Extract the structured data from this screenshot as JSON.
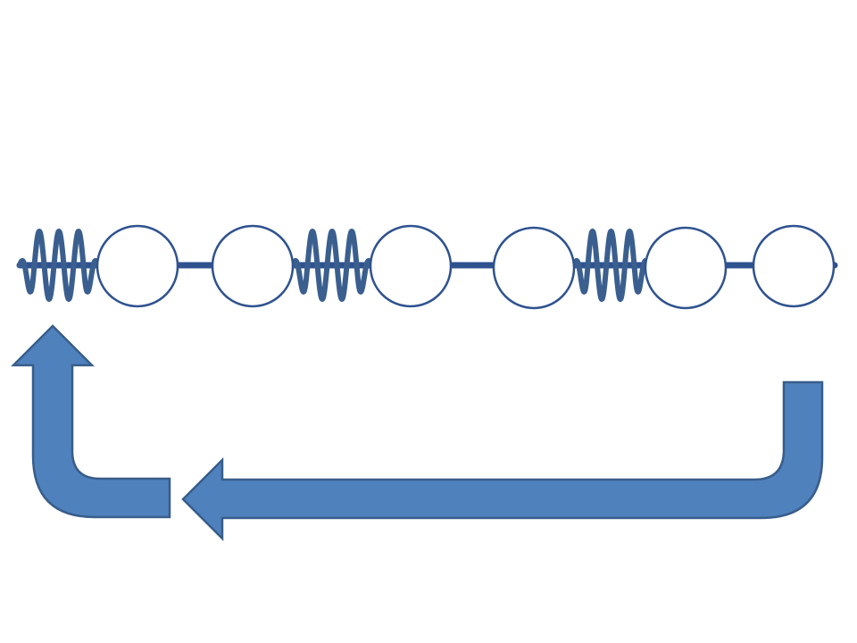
{
  "diagram": {
    "description_of_content": "",
    "colors": {
      "line": "#2f528f",
      "spring": "#3a5f8f",
      "mass_fill": "#ffffff",
      "mass_stroke": "#2f528f",
      "arrow_fill": "#4f81bd",
      "arrow_stroke": "#385d8a"
    },
    "chain": {
      "element_sequence": [
        "spring",
        "mass",
        "mass",
        "spring",
        "mass",
        "mass",
        "spring",
        "mass",
        "mass"
      ],
      "spring_count": 3,
      "mass_count": 6
    },
    "arrows": [
      {
        "kind": "u-turn-arrow",
        "direction": "right-to-left-then-up"
      }
    ]
  }
}
